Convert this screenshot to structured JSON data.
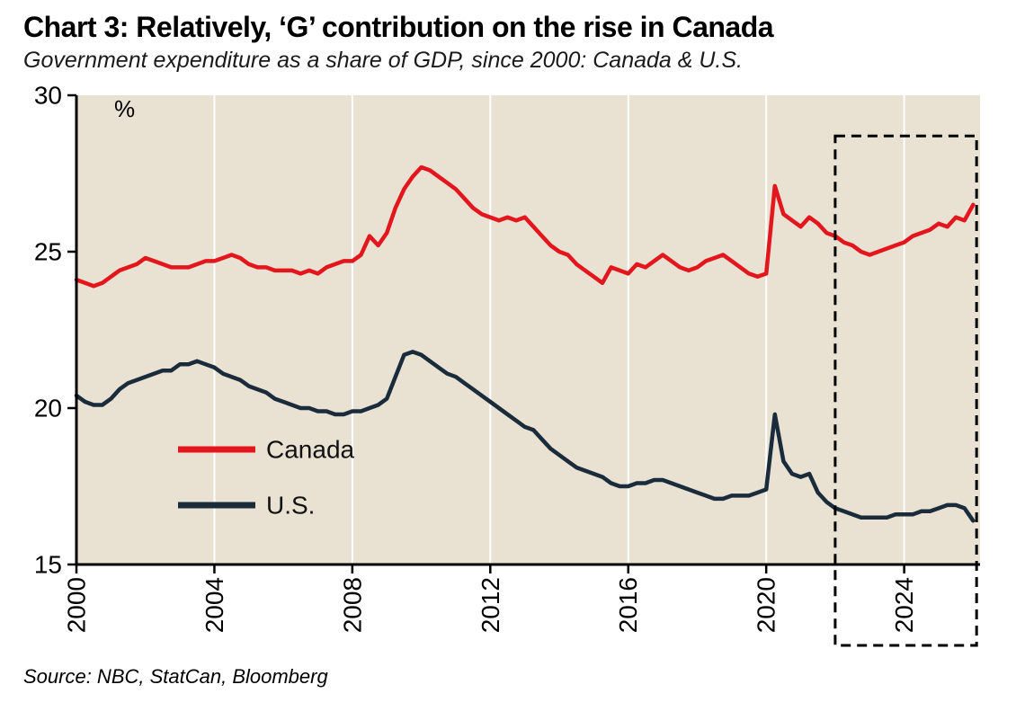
{
  "header": {
    "title": "Chart 3: Relatively, ‘G’ contribution on the rise in Canada",
    "subtitle": "Government expenditure as a share of GDP, since 2000: Canada & U.S."
  },
  "footer": {
    "source": "Source: NBC, StatCan, Bloomberg"
  },
  "chart_data": {
    "type": "line",
    "title": "Chart 3: Relatively, ‘G’ contribution on the rise in Canada",
    "subtitle": "Government expenditure as a share of GDP, since 2000: Canada & U.S.",
    "unit_label": "%",
    "xlabel": "",
    "ylabel": "%",
    "xlim": [
      2000,
      2026.2
    ],
    "ylim": [
      15,
      30
    ],
    "x_ticks": [
      2000,
      2004,
      2008,
      2012,
      2016,
      2020,
      2024
    ],
    "y_ticks": [
      15,
      20,
      25,
      30
    ],
    "grid": "vertical-white",
    "plot_bg": "#e9e1d2",
    "grid_color": "#ffffff",
    "axis_color": "#000000",
    "legend_position": "inside-left",
    "x_start": 2000,
    "x_step": 0.25,
    "series": [
      {
        "name": "Canada",
        "color": "#e3161e",
        "values": [
          24.1,
          24.0,
          23.9,
          24.0,
          24.2,
          24.4,
          24.5,
          24.6,
          24.8,
          24.7,
          24.6,
          24.5,
          24.5,
          24.5,
          24.6,
          24.7,
          24.7,
          24.8,
          24.9,
          24.8,
          24.6,
          24.5,
          24.5,
          24.4,
          24.4,
          24.4,
          24.3,
          24.4,
          24.3,
          24.5,
          24.6,
          24.7,
          24.7,
          24.9,
          25.5,
          25.2,
          25.6,
          26.4,
          27.0,
          27.4,
          27.7,
          27.6,
          27.4,
          27.2,
          27.0,
          26.7,
          26.4,
          26.2,
          26.1,
          26.0,
          26.1,
          26.0,
          26.1,
          25.8,
          25.5,
          25.2,
          25.0,
          24.9,
          24.6,
          24.4,
          24.2,
          24.0,
          24.5,
          24.4,
          24.3,
          24.6,
          24.5,
          24.7,
          24.9,
          24.7,
          24.5,
          24.4,
          24.5,
          24.7,
          24.8,
          24.9,
          24.7,
          24.5,
          24.3,
          24.2,
          24.3,
          27.1,
          26.2,
          26.0,
          25.8,
          26.1,
          25.9,
          25.6,
          25.5,
          25.3,
          25.2,
          25.0,
          24.9,
          25.0,
          25.1,
          25.2,
          25.3,
          25.5,
          25.6,
          25.7,
          25.9,
          25.8,
          26.1,
          26.0,
          26.5
        ]
      },
      {
        "name": "U.S.",
        "color": "#1a2b3b",
        "values": [
          20.4,
          20.2,
          20.1,
          20.1,
          20.3,
          20.6,
          20.8,
          20.9,
          21.0,
          21.1,
          21.2,
          21.2,
          21.4,
          21.4,
          21.5,
          21.4,
          21.3,
          21.1,
          21.0,
          20.9,
          20.7,
          20.6,
          20.5,
          20.3,
          20.2,
          20.1,
          20.0,
          20.0,
          19.9,
          19.9,
          19.8,
          19.8,
          19.9,
          19.9,
          20.0,
          20.1,
          20.3,
          21.0,
          21.7,
          21.8,
          21.7,
          21.5,
          21.3,
          21.1,
          21.0,
          20.8,
          20.6,
          20.4,
          20.2,
          20.0,
          19.8,
          19.6,
          19.4,
          19.3,
          19.0,
          18.7,
          18.5,
          18.3,
          18.1,
          18.0,
          17.9,
          17.8,
          17.6,
          17.5,
          17.5,
          17.6,
          17.6,
          17.7,
          17.7,
          17.6,
          17.5,
          17.4,
          17.3,
          17.2,
          17.1,
          17.1,
          17.2,
          17.2,
          17.2,
          17.3,
          17.4,
          19.8,
          18.3,
          17.9,
          17.8,
          17.9,
          17.3,
          17.0,
          16.8,
          16.7,
          16.6,
          16.5,
          16.5,
          16.5,
          16.5,
          16.6,
          16.6,
          16.6,
          16.7,
          16.7,
          16.8,
          16.9,
          16.9,
          16.8,
          16.4
        ]
      }
    ],
    "highlight_box": {
      "x0": 2022.0,
      "x1": 2026.1,
      "y_top": 28.7,
      "style": "dashed-black",
      "extends_below_axis": true
    }
  }
}
